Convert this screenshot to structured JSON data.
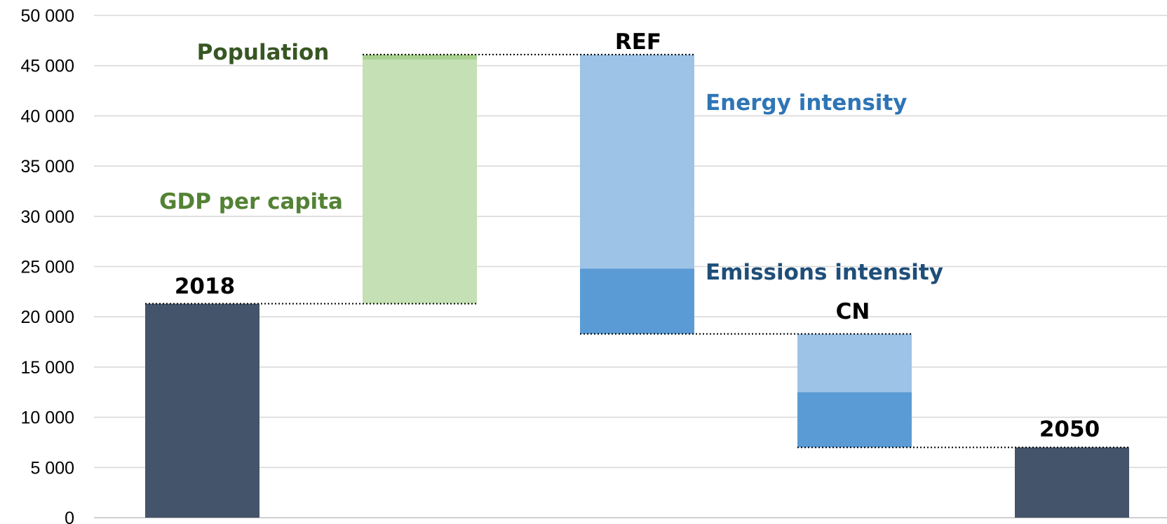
{
  "chart_data": {
    "type": "bar",
    "subtype": "waterfall",
    "ylim": [
      0,
      50000
    ],
    "yticks": [
      0,
      5000,
      10000,
      15000,
      20000,
      25000,
      30000,
      35000,
      40000,
      45000,
      50000
    ],
    "ytick_labels": [
      "0",
      "5 000",
      "10 000",
      "15 000",
      "20 000",
      "25 000",
      "30 000",
      "35 000",
      "40 000",
      "45 000",
      "50 000"
    ],
    "grid": true,
    "legend": "none",
    "segments": [
      {
        "id": "2018-total",
        "slot": 0,
        "from": 0,
        "to": 21300,
        "color": "#44546A"
      },
      {
        "id": "gdp-per-capita",
        "slot": 1,
        "from": 21300,
        "to": 45600,
        "color": "#C5E0B4"
      },
      {
        "id": "population",
        "slot": 1,
        "from": 45600,
        "to": 46100,
        "color": "#A9D18E"
      },
      {
        "id": "ref-energy-intensity",
        "slot": 2,
        "from": 24800,
        "to": 46100,
        "color": "#9DC3E6"
      },
      {
        "id": "ref-emissions-intensity",
        "slot": 2,
        "from": 18300,
        "to": 24800,
        "color": "#5B9BD5"
      },
      {
        "id": "cn-energy-intensity",
        "slot": 3,
        "from": 12500,
        "to": 18300,
        "color": "#9DC3E6"
      },
      {
        "id": "cn-emissions-intensity",
        "slot": 3,
        "from": 7000,
        "to": 12500,
        "color": "#5B9BD5"
      },
      {
        "id": "2050-total",
        "slot": 4,
        "from": 0,
        "to": 7000,
        "color": "#44546A"
      }
    ],
    "connectors": [
      {
        "from_slot": 0,
        "to_slot": 1,
        "value": 21300
      },
      {
        "from_slot": 1,
        "to_slot": 2,
        "value": 46100
      },
      {
        "from_slot": 2,
        "to_slot": 3,
        "value": 18300
      },
      {
        "from_slot": 3,
        "to_slot": 4,
        "value": 7000
      }
    ],
    "annotations": [
      {
        "id": "label-2018",
        "text": "2018",
        "color": "#000000"
      },
      {
        "id": "label-population",
        "text": "Population",
        "color": "#375623"
      },
      {
        "id": "label-gdp-per-capita",
        "text": "GDP per capita",
        "color": "#548235"
      },
      {
        "id": "label-ref",
        "text": "REF",
        "color": "#000000"
      },
      {
        "id": "label-energy-intensity",
        "text": "Energy intensity",
        "color": "#2E75B6"
      },
      {
        "id": "label-emissions-intensity",
        "text": "Emissions intensity",
        "color": "#1F4E79"
      },
      {
        "id": "label-cn",
        "text": "CN",
        "color": "#000000"
      },
      {
        "id": "label-2050",
        "text": "2050",
        "color": "#000000"
      }
    ]
  }
}
